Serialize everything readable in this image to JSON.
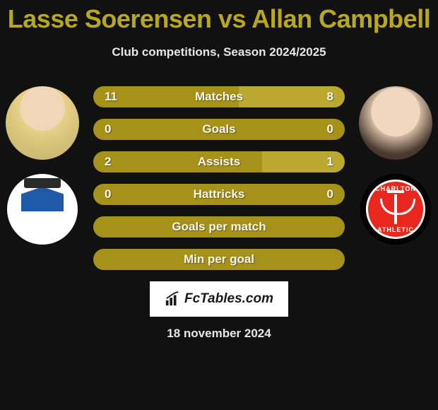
{
  "header": {
    "title": "Lasse Soerensen vs Allan Campbell",
    "subtitle": "Club competitions, Season 2024/2025",
    "title_color": "#b8a81f"
  },
  "footer": {
    "brand": "FcTables.com",
    "date": "18 november 2024"
  },
  "colors": {
    "bar_full": "#a69218",
    "bar_left_split": "#a69218",
    "bar_right_split": "#bba830",
    "bar_text": "#f5f5f5",
    "background": "#111111"
  },
  "players": {
    "left": {
      "name": "Lasse Soerensen",
      "club": "Huddersfield"
    },
    "right": {
      "name": "Allan Campbell",
      "club": "Charlton Athletic"
    }
  },
  "club_labels": {
    "charlton_top": "CHARLTON",
    "charlton_bottom": "ATHLETIC"
  },
  "stats": [
    {
      "label": "Matches",
      "left_val": "11",
      "right_val": "8",
      "left_pct": 58,
      "right_pct": 42,
      "split": true
    },
    {
      "label": "Goals",
      "left_val": "0",
      "right_val": "0",
      "left_pct": 100,
      "right_pct": 0,
      "split": false
    },
    {
      "label": "Assists",
      "left_val": "2",
      "right_val": "1",
      "left_pct": 67,
      "right_pct": 33,
      "split": true
    },
    {
      "label": "Hattricks",
      "left_val": "0",
      "right_val": "0",
      "left_pct": 100,
      "right_pct": 0,
      "split": false
    },
    {
      "label": "Goals per match",
      "left_val": "",
      "right_val": "",
      "left_pct": 100,
      "right_pct": 0,
      "split": false
    },
    {
      "label": "Min per goal",
      "left_val": "",
      "right_val": "",
      "left_pct": 100,
      "right_pct": 0,
      "split": false
    }
  ]
}
